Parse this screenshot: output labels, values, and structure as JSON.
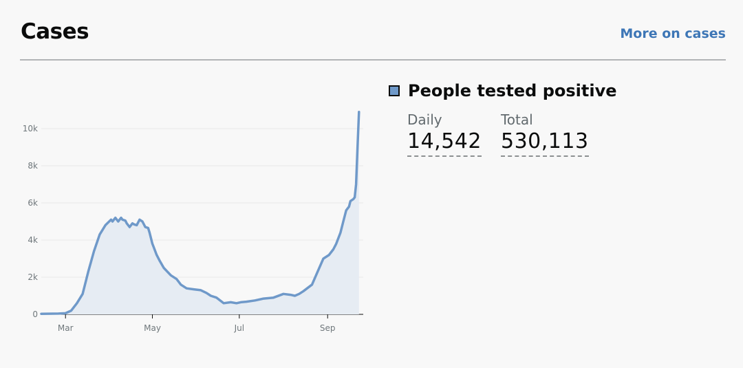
{
  "header": {
    "title": "Cases",
    "more_link": "More on cases"
  },
  "legend": {
    "label": "People tested positive",
    "swatch_color": "#6f99c9"
  },
  "stats": [
    {
      "label": "Daily",
      "value": "14,542"
    },
    {
      "label": "Total",
      "value": "530,113"
    }
  ],
  "chart_data": {
    "type": "area",
    "title": "",
    "xlabel": "",
    "ylabel": "",
    "ylim": [
      0,
      11000
    ],
    "xlim": [
      "2020-02-13",
      "2020-09-26"
    ],
    "y_ticks": [
      0,
      2000,
      4000,
      6000,
      8000,
      10000
    ],
    "y_tick_labels": [
      "0",
      "2k",
      "4k",
      "6k",
      "8k",
      "10k"
    ],
    "x_ticks": [
      "2020-03-01",
      "2020-05-01",
      "2020-07-01",
      "2020-09-01"
    ],
    "x_tick_labels": [
      "Mar",
      "May",
      "Jul",
      "Sep"
    ],
    "grid": true,
    "line_color": "#6f99c9",
    "fill_color": "#e6ecf3",
    "series": [
      {
        "x": [
          "2020-02-13",
          "2020-02-25",
          "2020-03-01",
          "2020-03-05",
          "2020-03-09",
          "2020-03-13",
          "2020-03-17",
          "2020-03-21",
          "2020-03-25",
          "2020-03-29",
          "2020-04-02",
          "2020-04-03",
          "2020-04-05",
          "2020-04-07",
          "2020-04-09",
          "2020-04-10",
          "2020-04-12",
          "2020-04-13",
          "2020-04-15",
          "2020-04-17",
          "2020-04-18",
          "2020-04-20",
          "2020-04-22",
          "2020-04-24",
          "2020-04-26",
          "2020-04-28",
          "2020-04-29",
          "2020-05-01",
          "2020-05-02",
          "2020-05-04",
          "2020-05-06",
          "2020-05-09",
          "2020-05-14",
          "2020-05-18",
          "2020-05-21",
          "2020-05-25",
          "2020-05-30",
          "2020-06-04",
          "2020-06-08",
          "2020-06-11",
          "2020-06-15",
          "2020-06-20",
          "2020-06-25",
          "2020-06-29",
          "2020-07-02",
          "2020-07-06",
          "2020-07-12",
          "2020-07-18",
          "2020-07-25",
          "2020-08-01",
          "2020-08-06",
          "2020-08-09",
          "2020-08-12",
          "2020-08-15",
          "2020-08-21",
          "2020-08-25",
          "2020-08-29",
          "2020-09-02",
          "2020-09-05",
          "2020-09-07",
          "2020-09-10",
          "2020-09-12",
          "2020-09-14",
          "2020-09-16",
          "2020-09-17",
          "2020-09-19",
          "2020-09-20",
          "2020-09-21",
          "2020-09-22",
          "2020-09-23"
        ],
        "values": [
          30,
          40,
          60,
          200,
          600,
          1100,
          2300,
          3400,
          4300,
          4800,
          5100,
          5000,
          5200,
          5000,
          5200,
          5100,
          5050,
          4900,
          4700,
          4900,
          4850,
          4800,
          5100,
          5000,
          4700,
          4650,
          4400,
          3800,
          3600,
          3200,
          2900,
          2500,
          2100,
          1900,
          1600,
          1400,
          1350,
          1300,
          1150,
          1000,
          900,
          600,
          650,
          600,
          650,
          680,
          750,
          850,
          900,
          1100,
          1050,
          1000,
          1100,
          1250,
          1600,
          2300,
          3000,
          3200,
          3500,
          3800,
          4400,
          5000,
          5600,
          5800,
          6100,
          6200,
          6300,
          7000,
          9000,
          10900
        ]
      }
    ]
  }
}
